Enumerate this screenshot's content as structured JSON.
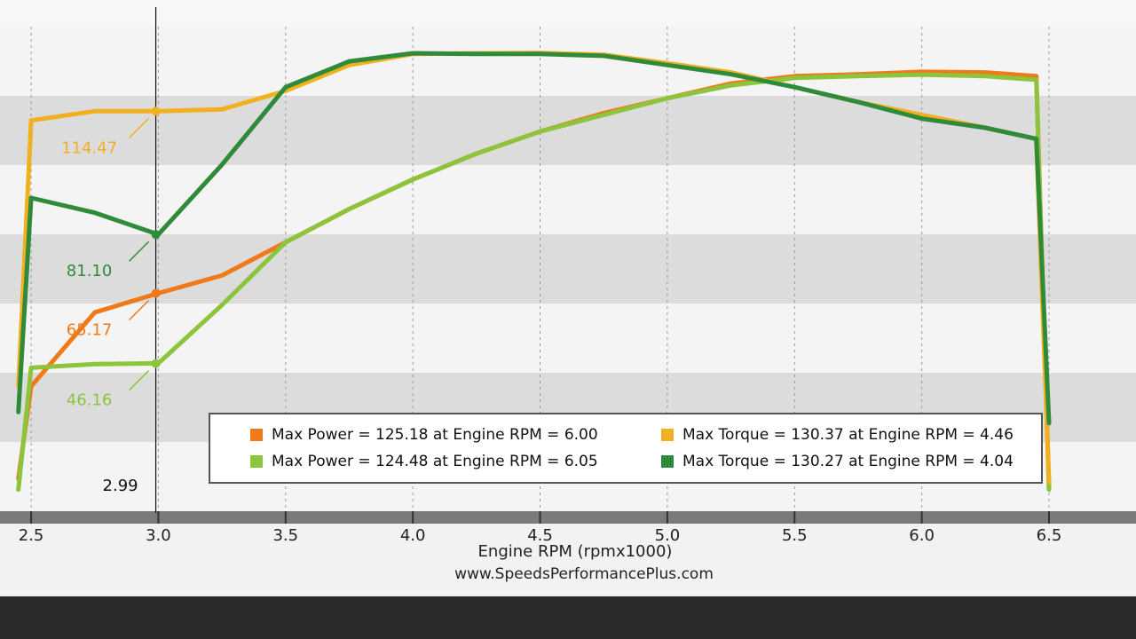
{
  "chart_data": {
    "type": "line",
    "xlabel": "Engine RPM (rpmx1000)",
    "footer": "www.SpeedsPerformancePlus.com",
    "x": [
      2.45,
      2.5,
      2.75,
      3.0,
      3.25,
      3.5,
      3.75,
      4.0,
      4.25,
      4.5,
      4.75,
      5.0,
      5.25,
      5.5,
      5.75,
      6.0,
      6.25,
      6.45,
      6.5
    ],
    "series": [
      {
        "name": "Max Power = 125.18 at Engine RPM = 6.00",
        "color": "#f07a1a",
        "values": [
          15,
          40,
          60,
          65.2,
          70,
          79,
          88,
          96,
          103,
          109,
          114,
          118,
          122,
          124,
          124.5,
          125.18,
          125,
          124,
          12
        ]
      },
      {
        "name": "Max Power = 124.48 at Engine RPM = 6.05",
        "color": "#8cc43c",
        "values": [
          12,
          45,
          46,
          46.2,
          62,
          79,
          88,
          96,
          103,
          109,
          113.5,
          118,
          121.5,
          123.5,
          124,
          124.4,
          124,
          123,
          12
        ]
      },
      {
        "name": "Max Torque = 130.37 at Engine RPM = 4.46",
        "color": "#f0b020",
        "values": [
          40,
          112,
          114.5,
          114.5,
          115,
          120,
          127,
          130,
          130.2,
          130.3,
          129.8,
          127.5,
          125,
          121,
          117,
          113.5,
          110,
          107,
          14
        ]
      },
      {
        "name": "Max Torque = 130.27 at Engine RPM = 4.04",
        "color": "#2f8a3a",
        "values": [
          33,
          91,
          87,
          81.1,
          100,
          121,
          128,
          130.2,
          130,
          130,
          129.5,
          127,
          124.5,
          121,
          117,
          112.5,
          110,
          107,
          30
        ]
      }
    ],
    "cursor": {
      "x": 2.99,
      "values": [
        65.17,
        46.16,
        114.47,
        81.1
      ],
      "value_labels": [
        "65.17",
        "46.16",
        "114.47",
        "81.10"
      ]
    },
    "xlim": [
      2.43,
      6.65
    ],
    "ylim": [
      10,
      135
    ],
    "xticks": [
      2.5,
      {
        "value": 3,
        "label": "3.0"
      },
      3.5,
      {
        "value": 4,
        "label": "4.0"
      },
      4.5,
      {
        "value": 5,
        "label": "5.0"
      },
      5.5,
      {
        "value": 6,
        "label": "6.0"
      },
      6.5
    ],
    "grid": true
  }
}
